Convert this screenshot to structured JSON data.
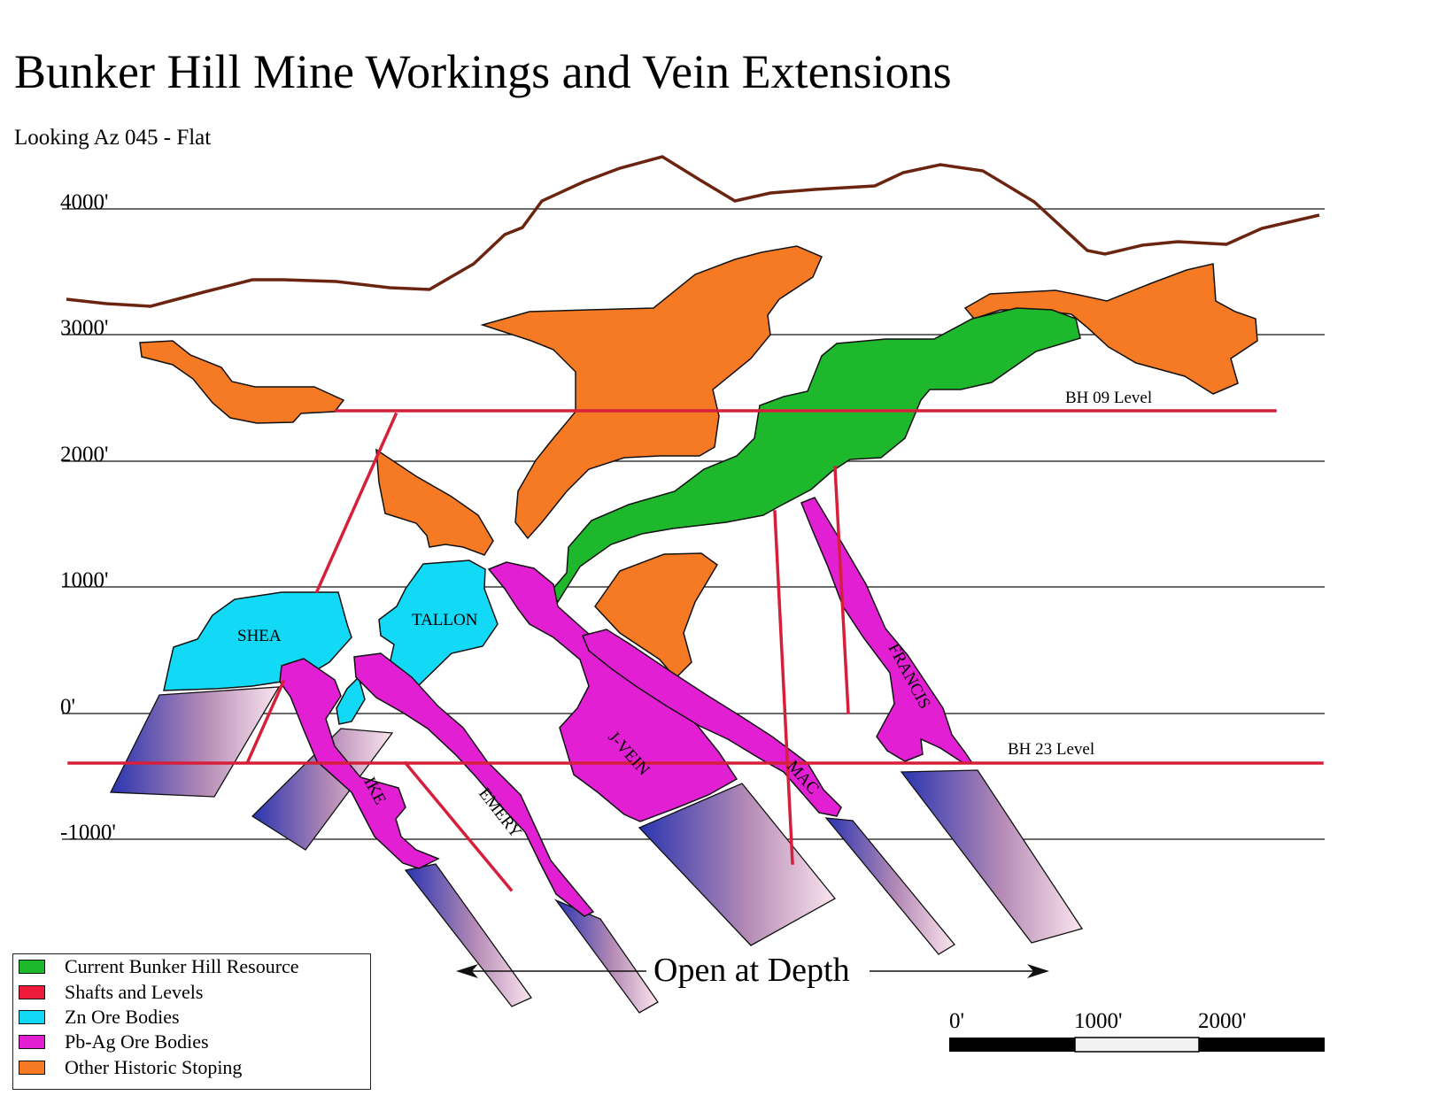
{
  "title": "Bunker Hill Mine Workings and Vein Extensions",
  "subtitle": "Looking Az 045 - Flat",
  "elevations": [
    "4000'",
    "3000'",
    "2000'",
    "1000'",
    "0'",
    "-1000'"
  ],
  "levels": {
    "bh09": "BH 09 Level",
    "bh23": "BH 23 Level"
  },
  "ore_bodies": {
    "shea": "SHEA",
    "tallon": "TALLON",
    "ike": "IKE",
    "emery": "EMERY",
    "jvein": "J-VEIN",
    "mac": "MAC",
    "francis": "FRANCIS"
  },
  "open_at_depth": "Open at Depth",
  "scale": {
    "labels": [
      "0'",
      "1000'",
      "2000'"
    ]
  },
  "legend": [
    {
      "label": "Current Bunker Hill Resource",
      "color": "#1db82b"
    },
    {
      "label": "Shafts and Levels",
      "color": "#ee1c3a"
    },
    {
      "label": "Zn Ore Bodies",
      "color": "#12d9f5"
    },
    {
      "label": "Pb-Ag Ore Bodies",
      "color": "#e21fd3"
    },
    {
      "label": "Other Historic Stoping",
      "color": "#f57a23"
    }
  ],
  "colors": {
    "topography": "#6b2410",
    "shaft": "#d61f3a",
    "resource": "#1db82b",
    "zn": "#12d9f5",
    "pbag": "#e21fd3",
    "stoping": "#f57a23",
    "extension_deep": "#2a34b0",
    "extension_light": "#fbe5ee"
  }
}
